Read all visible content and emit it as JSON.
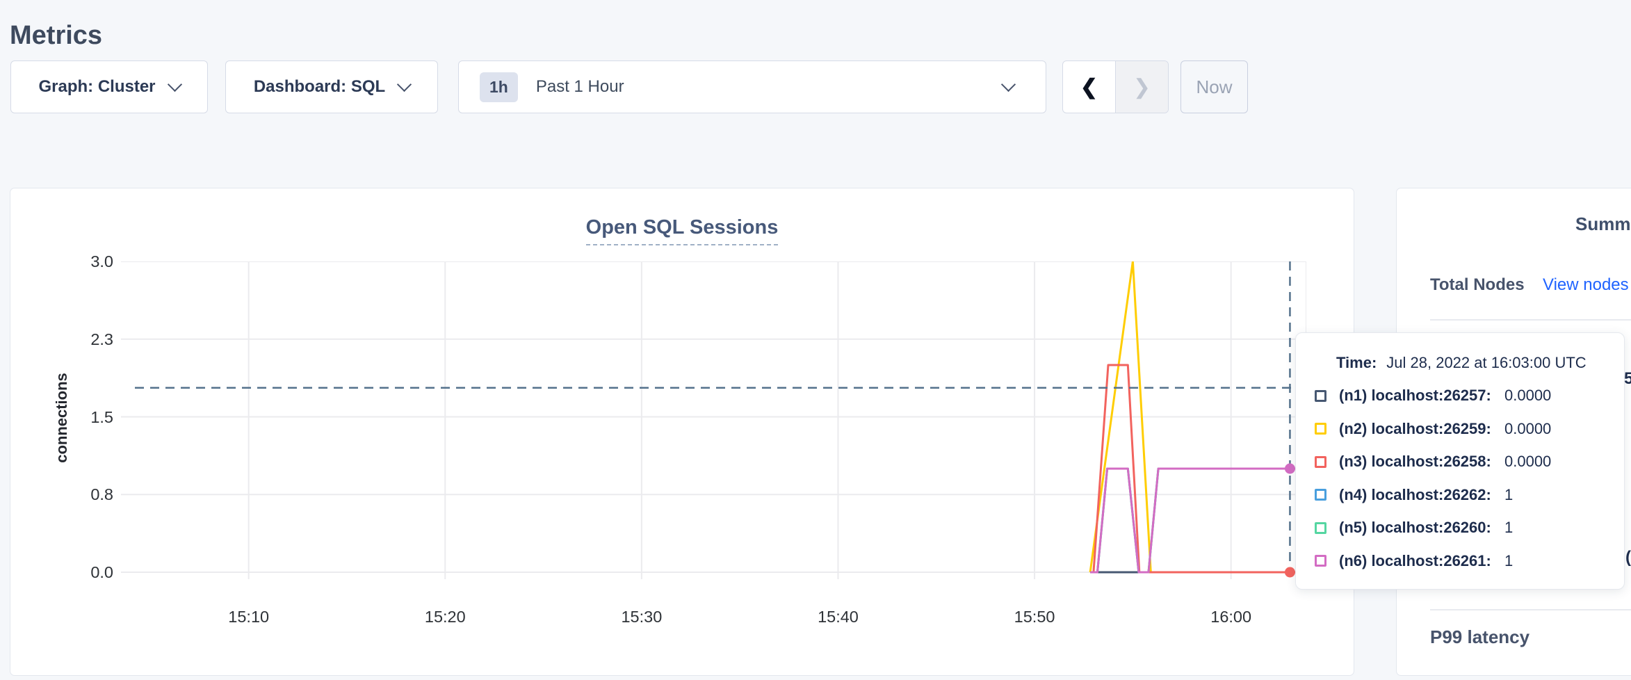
{
  "page": {
    "title": "Metrics"
  },
  "toolbar": {
    "graph_label": "Graph: Cluster",
    "dashboard_label": "Dashboard: SQL",
    "time_badge": "1h",
    "time_label": "Past 1 Hour",
    "prev_icon": "❮",
    "next_icon": "❯",
    "now_label": "Now"
  },
  "chart": {
    "title": "Open SQL Sessions",
    "ylabel": "connections"
  },
  "tooltip": {
    "time_label": "Time:",
    "time_value": "Jul 28, 2022 at 16:03:00 UTC",
    "rows": [
      {
        "label": "(n1) localhost:26257:",
        "value": "0.0000",
        "color": "#475872"
      },
      {
        "label": "(n2) localhost:26259:",
        "value": "0.0000",
        "color": "#ffcd02"
      },
      {
        "label": "(n3) localhost:26258:",
        "value": "0.0000",
        "color": "#f2635e"
      },
      {
        "label": "(n4) localhost:26262:",
        "value": "1",
        "color": "#499fde"
      },
      {
        "label": "(n5) localhost:26260:",
        "value": "1",
        "color": "#55d6a1"
      },
      {
        "label": "(n6) localhost:26261:",
        "value": "1",
        "color": "#d36cc3"
      }
    ]
  },
  "summary": {
    "title": "Summary",
    "total_nodes_label": "Total Nodes",
    "view_nodes_link": "View nodes",
    "p99_label": "P99 latency"
  },
  "fragments": [
    {
      "text": "5"
    },
    {
      "text": "("
    }
  ],
  "chart_data": {
    "type": "line",
    "title": "Open SQL Sessions",
    "ylabel": "connections",
    "ylim": [
      0,
      3
    ],
    "grid": true,
    "yticks": [
      {
        "label": "3.0",
        "value": 3.0
      },
      {
        "label": "2.3",
        "value": 2.25
      },
      {
        "label": "1.5",
        "value": 1.5
      },
      {
        "label": "0.8",
        "value": 0.75
      },
      {
        "label": "0.0",
        "value": 0.0
      }
    ],
    "xticks": [
      "15:10",
      "15:20",
      "15:30",
      "15:40",
      "15:50",
      "16:00"
    ],
    "x_domain": [
      "15:03:30",
      "16:03:50"
    ],
    "crosshair_time": "16:03:00",
    "guideline_value": 1.78,
    "series": [
      {
        "name": "(n1) localhost:26257",
        "color": "#475872",
        "points": [
          [
            "15:52:50",
            0
          ],
          [
            "16:03:50",
            0
          ]
        ]
      },
      {
        "name": "(n2) localhost:26259",
        "color": "#ffcd02",
        "points": [
          [
            "15:52:50",
            0
          ],
          [
            "15:55:00",
            3
          ],
          [
            "15:55:55",
            0
          ],
          [
            "16:03:50",
            0
          ]
        ]
      },
      {
        "name": "(n3) localhost:26258",
        "color": "#f2635e",
        "points": [
          [
            "15:53:00",
            0
          ],
          [
            "15:53:45",
            2
          ],
          [
            "15:54:45",
            2
          ],
          [
            "15:55:20",
            0
          ],
          [
            "16:03:50",
            0
          ]
        ]
      },
      {
        "name": "(n4) localhost:26262",
        "color": "#499fde",
        "points": [
          [
            "15:52:50",
            0
          ],
          [
            "15:53:12",
            0
          ],
          [
            "15:53:42",
            1
          ],
          [
            "15:54:45",
            1
          ],
          [
            "15:55:18",
            0
          ],
          [
            "15:55:48",
            0
          ],
          [
            "15:56:18",
            1
          ],
          [
            "16:03:50",
            1
          ]
        ]
      },
      {
        "name": "(n5) localhost:26260",
        "color": "#55d6a1",
        "points": [
          [
            "15:52:50",
            0
          ],
          [
            "15:53:12",
            0
          ],
          [
            "15:53:42",
            1
          ],
          [
            "15:54:45",
            1
          ],
          [
            "15:55:18",
            0
          ],
          [
            "15:55:48",
            0
          ],
          [
            "15:56:18",
            1
          ],
          [
            "16:03:50",
            1
          ]
        ]
      },
      {
        "name": "(n6) localhost:26261",
        "color": "#d36cc3",
        "points": [
          [
            "15:52:50",
            0
          ],
          [
            "15:53:12",
            0
          ],
          [
            "15:53:42",
            1
          ],
          [
            "15:54:45",
            1
          ],
          [
            "15:55:18",
            0
          ],
          [
            "15:55:48",
            0
          ],
          [
            "15:56:18",
            1
          ],
          [
            "16:03:50",
            1
          ]
        ]
      }
    ],
    "endpoint_dots": [
      {
        "time": "16:03:00",
        "value": 1,
        "color": "#d36cc3"
      },
      {
        "time": "16:03:00",
        "value": 0,
        "color": "#f2635e"
      }
    ]
  }
}
